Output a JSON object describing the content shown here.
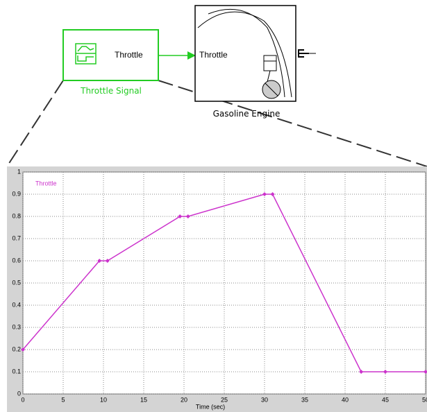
{
  "diagram": {
    "signal_block": {
      "port_label": "Throttle",
      "label": "Throttle Signal"
    },
    "engine_block": {
      "port_label": "Throttle",
      "label": "Gasoline Engine"
    }
  },
  "chart_data": {
    "type": "line",
    "x": [
      0,
      9.5,
      10.5,
      19.5,
      20.5,
      30,
      31,
      42,
      45,
      50
    ],
    "series": [
      {
        "name": "Throttle",
        "color": "#cc33cc",
        "values": [
          0.2,
          0.6,
          0.6,
          0.8,
          0.8,
          0.9,
          0.9,
          0.1,
          0.1,
          0.1
        ]
      }
    ],
    "xlabel": "Time (sec)",
    "xlim": [
      0,
      50
    ],
    "xticks": [
      0,
      5,
      10,
      15,
      20,
      25,
      30,
      35,
      40,
      45,
      50
    ],
    "ylim": [
      0,
      1
    ],
    "yticks": [
      0,
      0.1,
      0.2,
      0.3,
      0.4,
      0.5,
      0.6,
      0.7,
      0.8,
      0.9,
      1
    ],
    "grid": true
  }
}
